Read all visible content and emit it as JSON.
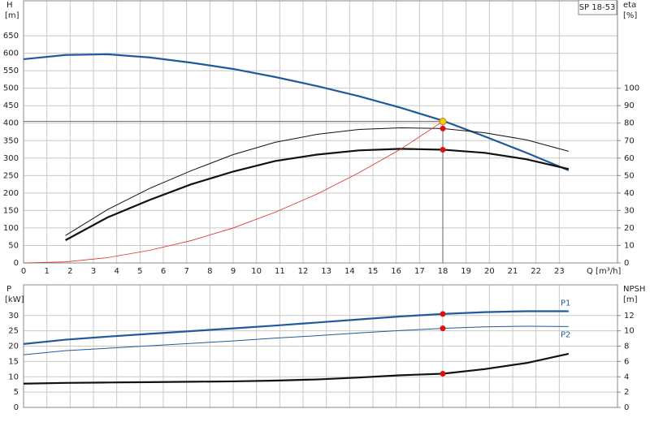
{
  "chart_data": [
    {
      "type": "line",
      "ylabel": "H",
      "yunit": "[m]",
      "y2label": "eta",
      "y2unit": "[%]",
      "xlabel": "Q [m³/h]",
      "annotation": "SP 18-53",
      "x": [
        0,
        1.8,
        3.6,
        5.4,
        7.2,
        9,
        10.8,
        12.6,
        14.4,
        16.2,
        18,
        19.8,
        21.6,
        23.4
      ],
      "xlim": [
        0,
        25.5
      ],
      "xticks": [
        0,
        1,
        2,
        3,
        4,
        5,
        6,
        7,
        8,
        9,
        10,
        11,
        12,
        13,
        14,
        15,
        16,
        17,
        18,
        19,
        20,
        21,
        22,
        23
      ],
      "ylim": [
        0,
        750
      ],
      "yticks": [
        0,
        50,
        100,
        150,
        200,
        250,
        300,
        350,
        400,
        450,
        500,
        550,
        600,
        650
      ],
      "y2lim": [
        0,
        150
      ],
      "y2ticks": [
        0,
        10,
        20,
        30,
        40,
        50,
        60,
        70,
        80,
        90,
        100
      ],
      "grid": true,
      "duty": {
        "x": 18,
        "y": 405
      },
      "highlight_x": 18,
      "series": [
        {
          "color": "#1f5a9b",
          "width": 2.2,
          "values": [
            583,
            595,
            597,
            588,
            573,
            555,
            532,
            506,
            477,
            444,
            407,
            362,
            315,
            265
          ]
        },
        {
          "color": "#111111",
          "width": 1,
          "axis": "y2",
          "values": [
            null,
            15.7,
            30.5,
            42.6,
            52.8,
            62,
            69,
            73.6,
            76.4,
            77.3,
            76.9,
            74.5,
            70.4,
            63.9
          ]
        },
        {
          "color": "#111111",
          "width": 2.2,
          "axis": "y2",
          "values": [
            null,
            13,
            26,
            36,
            45,
            52.3,
            58.3,
            62,
            64.4,
            65.3,
            64.8,
            63,
            59.3,
            53.7
          ]
        },
        {
          "color": "#e03030",
          "width": 0.8,
          "values": [
            0,
            3,
            15,
            36,
            64,
            100,
            145,
            197,
            258,
            326,
            405,
            null,
            null,
            null
          ]
        }
      ]
    },
    {
      "type": "line",
      "ylabel": "P",
      "yunit": "[kW]",
      "y2label": "NPSH",
      "y2unit": "[m]",
      "x": [
        0,
        1.8,
        3.6,
        5.4,
        7.2,
        9,
        10.8,
        12.6,
        14.4,
        16.2,
        18,
        19.8,
        21.6,
        23.4
      ],
      "xlim": [
        0,
        25.5
      ],
      "xticks": [
        0,
        1,
        2,
        3,
        4,
        5,
        6,
        7,
        8,
        9,
        10,
        11,
        12,
        13,
        14,
        15,
        16,
        17,
        18,
        19,
        20,
        21,
        22,
        23
      ],
      "ylim": [
        0,
        40
      ],
      "yticks": [
        0,
        5,
        10,
        15,
        20,
        25,
        30
      ],
      "y2lim": [
        0,
        16
      ],
      "y2ticks": [
        0,
        2,
        4,
        6,
        8,
        10,
        12
      ],
      "grid": true,
      "highlight_x": 18,
      "series": [
        {
          "name": "P1",
          "color": "#1f5a9b",
          "width": 2.2,
          "values": [
            20.7,
            22.1,
            23.1,
            24,
            24.9,
            25.8,
            26.7,
            27.7,
            28.7,
            29.7,
            30.5,
            31.1,
            31.4,
            31.4
          ]
        },
        {
          "name": "P2",
          "color": "#1f5a9b",
          "width": 1,
          "values": [
            17.2,
            18.5,
            19.3,
            20.1,
            20.9,
            21.7,
            22.6,
            23.4,
            24.3,
            25.1,
            25.8,
            26.3,
            26.5,
            26.4
          ]
        },
        {
          "color": "#111111",
          "width": 2.2,
          "axis": "y2",
          "values": [
            3.1,
            3.2,
            3.25,
            3.3,
            3.35,
            3.4,
            3.5,
            3.65,
            3.9,
            4.2,
            4.4,
            5.0,
            5.8,
            7.0
          ]
        }
      ]
    }
  ]
}
